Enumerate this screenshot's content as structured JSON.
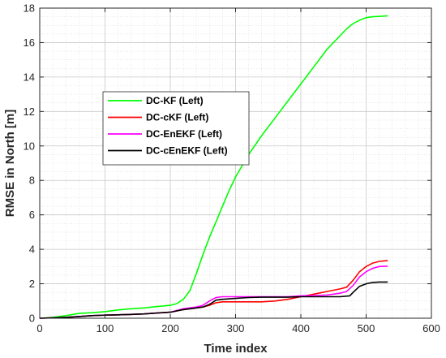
{
  "chart_data": {
    "type": "line",
    "title": "",
    "xlabel": "Time index",
    "ylabel": "RMSE in North [m]",
    "xlim": [
      0,
      600
    ],
    "ylim": [
      0,
      18
    ],
    "xticks": [
      0,
      100,
      200,
      300,
      400,
      500,
      600
    ],
    "yticks": [
      0,
      2,
      4,
      6,
      8,
      10,
      12,
      14,
      16,
      18
    ],
    "grid": true,
    "minor_grid": true,
    "legend_position": "upper-left",
    "series": [
      {
        "name": "DC-KF (Left)",
        "color": "#00ff00",
        "x": [
          0,
          20,
          40,
          60,
          80,
          100,
          120,
          140,
          160,
          180,
          200,
          210,
          220,
          230,
          240,
          250,
          260,
          270,
          280,
          290,
          300,
          320,
          340,
          360,
          380,
          400,
          420,
          440,
          460,
          470,
          480,
          490,
          500,
          510,
          520,
          533
        ],
        "y": [
          0,
          0.05,
          0.15,
          0.28,
          0.32,
          0.38,
          0.48,
          0.55,
          0.6,
          0.68,
          0.75,
          0.85,
          1.1,
          1.6,
          2.6,
          3.7,
          4.7,
          5.6,
          6.5,
          7.4,
          8.2,
          9.5,
          10.6,
          11.6,
          12.6,
          13.6,
          14.6,
          15.6,
          16.4,
          16.8,
          17.1,
          17.3,
          17.45,
          17.5,
          17.52,
          17.55
        ]
      },
      {
        "name": "DC-cKF (Left)",
        "color": "#ff0000",
        "x": [
          0,
          20,
          40,
          60,
          80,
          100,
          120,
          140,
          160,
          180,
          200,
          220,
          240,
          250,
          260,
          270,
          280,
          300,
          320,
          340,
          360,
          380,
          400,
          420,
          440,
          460,
          470,
          480,
          490,
          500,
          510,
          520,
          533
        ],
        "y": [
          0,
          0.02,
          0.05,
          0.1,
          0.15,
          0.18,
          0.2,
          0.22,
          0.25,
          0.3,
          0.35,
          0.5,
          0.6,
          0.65,
          0.75,
          0.9,
          0.95,
          0.95,
          0.95,
          0.95,
          1.0,
          1.1,
          1.25,
          1.4,
          1.55,
          1.7,
          1.8,
          2.2,
          2.7,
          3.0,
          3.2,
          3.3,
          3.35
        ]
      },
      {
        "name": "DC-EnEKF (Left)",
        "color": "#ff00ff",
        "x": [
          0,
          20,
          40,
          60,
          80,
          100,
          120,
          140,
          160,
          180,
          200,
          220,
          240,
          250,
          260,
          270,
          280,
          300,
          320,
          340,
          360,
          380,
          400,
          420,
          440,
          460,
          470,
          480,
          490,
          500,
          510,
          520,
          533
        ],
        "y": [
          0,
          0.02,
          0.05,
          0.1,
          0.15,
          0.18,
          0.2,
          0.22,
          0.25,
          0.3,
          0.35,
          0.55,
          0.65,
          0.75,
          1.0,
          1.2,
          1.25,
          1.25,
          1.25,
          1.25,
          1.25,
          1.25,
          1.3,
          1.32,
          1.35,
          1.45,
          1.55,
          1.9,
          2.4,
          2.7,
          2.9,
          3.0,
          3.02
        ]
      },
      {
        "name": "DC-cEnEKF (Left)",
        "color": "#000000",
        "x": [
          0,
          20,
          40,
          60,
          80,
          100,
          120,
          140,
          160,
          180,
          200,
          220,
          240,
          250,
          260,
          270,
          280,
          300,
          320,
          340,
          360,
          380,
          400,
          420,
          440,
          460,
          475,
          480,
          490,
          500,
          510,
          520,
          533
        ],
        "y": [
          0,
          0.02,
          0.05,
          0.1,
          0.15,
          0.18,
          0.2,
          0.22,
          0.25,
          0.3,
          0.35,
          0.5,
          0.6,
          0.65,
          0.8,
          1.05,
          1.1,
          1.15,
          1.2,
          1.22,
          1.22,
          1.22,
          1.25,
          1.25,
          1.25,
          1.25,
          1.3,
          1.5,
          1.85,
          2.0,
          2.08,
          2.1,
          2.1
        ]
      }
    ]
  }
}
